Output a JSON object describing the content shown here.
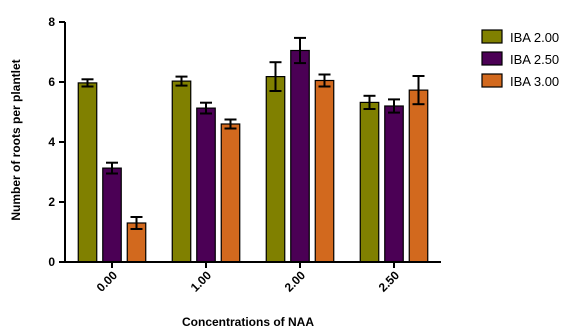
{
  "chart_data": {
    "type": "bar",
    "title": "",
    "xlabel": "Concentrations of NAA",
    "ylabel": "Number of roots per plantlet",
    "categories": [
      "0.00",
      "1.00",
      "2.00",
      "2.50"
    ],
    "ylim": [
      0,
      8
    ],
    "yticks": [
      "0",
      "2",
      "4",
      "6",
      "8"
    ],
    "grid": false,
    "legend_position": "right",
    "series": [
      {
        "name": "IBA 2.00",
        "color": "#808000",
        "values": [
          5.97,
          6.03,
          6.18,
          5.32
        ],
        "errors": [
          0.12,
          0.15,
          0.48,
          0.22
        ]
      },
      {
        "name": "IBA 2.50",
        "color": "#4B0055",
        "values": [
          3.13,
          5.13,
          7.05,
          5.2
        ],
        "errors": [
          0.18,
          0.18,
          0.42,
          0.22
        ]
      },
      {
        "name": "IBA 3.00",
        "color": "#D2691E",
        "values": [
          1.3,
          4.6,
          6.05,
          5.73
        ],
        "errors": [
          0.2,
          0.15,
          0.2,
          0.47
        ]
      }
    ]
  }
}
